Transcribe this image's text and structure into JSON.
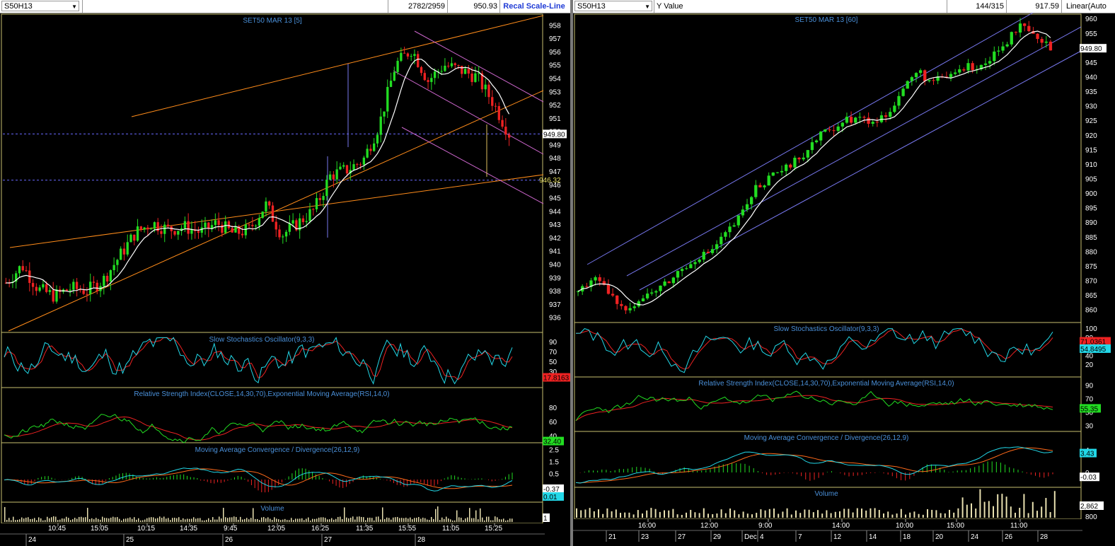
{
  "left": {
    "symbol": "S50H13",
    "counter": "2782/2959",
    "price": "950.93",
    "scale_mode": "Recal Scale-Line",
    "title": "SET50 MAR 13   [5]",
    "price_ticks": [
      "958",
      "957",
      "956",
      "955",
      "954",
      "953",
      "952",
      "951",
      "950",
      "949",
      "948",
      "947",
      "946",
      "945",
      "944",
      "943",
      "942",
      "941",
      "940",
      "939",
      "938",
      "937",
      "936"
    ],
    "last_price_tag": "949.80",
    "alt_price_tag": "946.32",
    "stoch_title": "Slow Stochastics Oscillator(9,3,3)",
    "stoch_ticks": [
      "90",
      "70",
      "50",
      "30"
    ],
    "stoch_tag": "17.8163",
    "rsi_title": "Relative Strength Index(CLOSE,14,30,70),Exponential Moving Average(RSI,14,0)",
    "rsi_ticks": [
      "80",
      "60",
      "40"
    ],
    "rsi_tag": "32.40",
    "macd_title": "Moving Average Convergence / Divergence(26,12,9)",
    "macd_ticks": [
      "2.5",
      "1.5",
      "0.5"
    ],
    "macd_tag1": "-0.37",
    "macd_tag2": "0.01",
    "volume_title": "Volume",
    "volume_tag": "1",
    "time_labels": [
      "10:45",
      "15:05",
      "10:15",
      "14:35",
      "9:45",
      "12:05",
      "16:25",
      "11:35",
      "15:55",
      "11:05",
      "15:25"
    ],
    "date_labels": [
      "24",
      "25",
      "26",
      "27",
      "28"
    ]
  },
  "right": {
    "symbol": "S50H13",
    "yvalue_label": "Y Value",
    "counter": "144/315",
    "price": "917.59",
    "scale_mode": "Linear(Auto",
    "title": "SET50 MAR 13   [60]",
    "price_ticks": [
      "960",
      "955",
      "950",
      "945",
      "940",
      "935",
      "930",
      "925",
      "920",
      "915",
      "910",
      "905",
      "900",
      "895",
      "890",
      "885",
      "880",
      "875",
      "870",
      "865",
      "860"
    ],
    "last_price_tag": "949.80",
    "stoch_title": "Slow Stochastics Oscillator(9,3,3)",
    "stoch_ticks": [
      "100",
      "80",
      "60",
      "40",
      "20"
    ],
    "stoch_tag1": "71.0361",
    "stoch_tag2": "54.8495",
    "rsi_title": "Relative Strength Index(CLOSE,14,30,70),Exponential Moving Average(RSI,14,0)",
    "rsi_ticks": [
      "90",
      "70",
      "50",
      "30"
    ],
    "rsi_tag": "55.35",
    "macd_title": "Moving Average Convergence / Divergence(26,12,9)",
    "macd_ticks": [
      "4",
      "0"
    ],
    "macd_tag1": "3.43",
    "macd_tag2": "-0.03",
    "volume_title": "Volume",
    "volume_ticks": [
      "800"
    ],
    "volume_tag": "2,862",
    "time_labels": [
      "16:00",
      "12:00",
      "9:00",
      "14:00",
      "10:00",
      "15:00",
      "11:00"
    ],
    "date_labels": [
      "21",
      "23",
      "27",
      "29",
      "Dec",
      "4",
      "7",
      "12",
      "14",
      "18",
      "20",
      "24",
      "26",
      "28"
    ]
  },
  "colors": {
    "background": "#000000",
    "panel_border": "#c8c070",
    "title_text": "#4a90d9",
    "axis_text": "#ffffff",
    "up_candle": "#22dd22",
    "down_candle": "#ee2222",
    "moving_average": "#ffffff",
    "trendline_left": "#ff8c1a",
    "trendline_magenta": "#cc66cc",
    "trendline_right": "#7777ee",
    "stoch_k": "#22d8e8",
    "stoch_d": "#ee2222",
    "rsi": "#22dd22",
    "rsi_ema": "#ee2222",
    "macd_line": "#22d8e8",
    "macd_signal": "#ff6a1a",
    "price_tag_bg": "#ffffff",
    "stoch_tag_bg": "#ee2222",
    "rsi_tag_bg": "#22dd22",
    "macd_tag_bg": "#22d8e8",
    "volume_bars": "#e8e0b0"
  },
  "chart_data": [
    {
      "type": "candlestick",
      "title": "SET50 MAR 13   [5]",
      "ylim": [
        935.5,
        958.5
      ],
      "x_time_labels": [
        "10:45",
        "15:05",
        "10:15",
        "14:35",
        "9:45",
        "12:05",
        "16:25",
        "11:35",
        "15:55",
        "11:05",
        "15:25"
      ],
      "close_path": [
        938.6,
        939.9,
        938.1,
        937.6,
        938.2,
        938.0,
        938.8,
        940.6,
        942.4,
        943.1,
        942.6,
        942.8,
        942.4,
        943.1,
        942.3,
        942.6,
        944.5,
        942.2,
        943.1,
        944.1,
        946.7,
        947.1,
        947.8,
        950.5,
        955.0,
        956.2,
        953.8,
        955.0,
        954.6,
        954.1,
        952.2,
        949.8
      ],
      "last": 949.8,
      "reference": 946.32
    },
    {
      "type": "candlestick",
      "title": "SET50 MAR 13   [60]",
      "ylim": [
        857,
        962
      ],
      "x_date_labels": [
        "21",
        "23",
        "27",
        "29",
        "Dec",
        "4",
        "7",
        "12",
        "14",
        "18",
        "20",
        "24",
        "26",
        "28"
      ],
      "close_path": [
        866,
        871,
        866,
        860,
        863,
        866,
        869,
        874,
        878,
        880,
        886,
        892,
        902,
        905,
        908,
        912,
        918,
        922,
        925,
        926,
        924,
        928,
        936,
        942,
        938,
        940,
        943,
        944,
        946,
        952,
        957,
        953,
        949.8
      ],
      "last": 949.8
    }
  ]
}
